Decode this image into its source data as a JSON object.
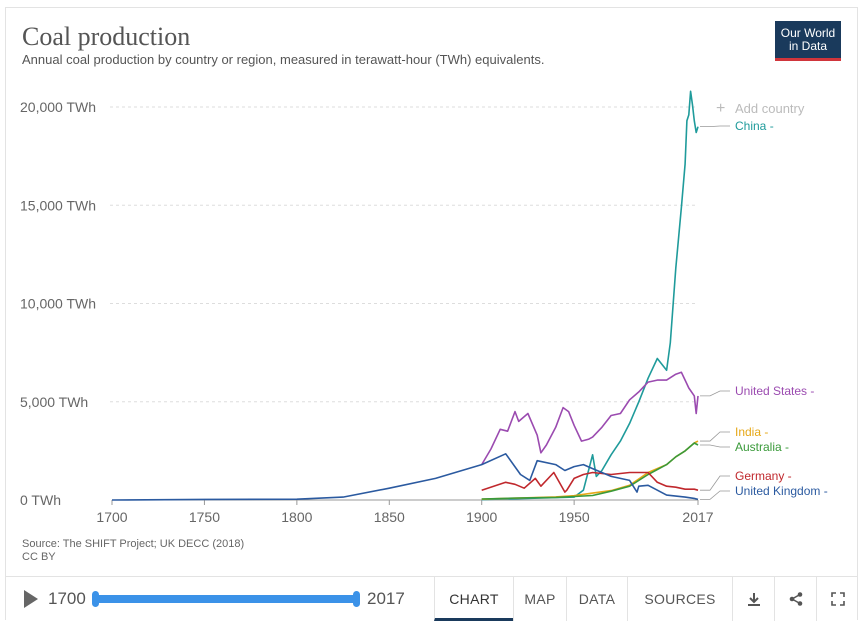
{
  "header": {
    "title": "Coal production",
    "subtitle": "Annual coal production by country or region, measured in terawatt-hour (TWh) equivalents.",
    "logo_line1": "Our World",
    "logo_line2": "in Data"
  },
  "add_country_label": "Add country",
  "source": {
    "line1": "Source: The SHIFT Project; UK DECC (2018)",
    "line2": "CC BY"
  },
  "footer": {
    "start_year": "1700",
    "end_year": "2017",
    "range_start_fraction": 0.0,
    "range_end_fraction": 1.0,
    "tabs": [
      "CHART",
      "MAP",
      "DATA",
      "SOURCES"
    ],
    "active_tab": "CHART",
    "icons": [
      "download-icon",
      "share-icon",
      "fullscreen-icon"
    ]
  },
  "colors": {
    "China": "#1f9b9b",
    "United States": "#9b4bb0",
    "India": "#e6a817",
    "Australia": "#3a9a3a",
    "Germany": "#c0282d",
    "United Kingdom": "#2b5aa0",
    "grid": "#dddddd"
  },
  "chart_data": {
    "type": "line",
    "title": "Coal production",
    "subtitle": "Annual coal production by country or region, measured in terawatt-hour (TWh) equivalents.",
    "xlabel": "",
    "ylabel": "",
    "xlim": [
      1700,
      2017
    ],
    "ylim": [
      0,
      20000
    ],
    "x_ticks": [
      "1700",
      "1750",
      "1800",
      "1850",
      "1900",
      "1950",
      "2017"
    ],
    "y_ticks": [
      "0 TWh",
      "5,000 TWh",
      "10,000 TWh",
      "15,000 TWh",
      "20,000 TWh"
    ],
    "y_tick_values": [
      0,
      5000,
      10000,
      15000,
      20000
    ],
    "x_tick_values": [
      1700,
      1750,
      1800,
      1850,
      1900,
      1950,
      2017
    ],
    "grid": true,
    "legend_position": "right (line end labels)",
    "series": [
      {
        "name": "China",
        "label": "China -",
        "x": [
          1900,
          1950,
          1955,
          1960,
          1962,
          1965,
          1970,
          1975,
          1980,
          1985,
          1990,
          1995,
          2000,
          2002,
          2005,
          2008,
          2010,
          2011,
          2012,
          2013,
          2014,
          2015,
          2016,
          2017
        ],
        "y": [
          20,
          150,
          500,
          2300,
          1200,
          1500,
          2300,
          3000,
          3900,
          5000,
          6200,
          7200,
          6600,
          8000,
          11800,
          14900,
          17100,
          19300,
          19600,
          20800,
          20100,
          19300,
          18700,
          19000
        ]
      },
      {
        "name": "United States",
        "label": "United States -",
        "x": [
          1900,
          1905,
          1910,
          1914,
          1918,
          1920,
          1925,
          1930,
          1932,
          1935,
          1940,
          1944,
          1947,
          1950,
          1954,
          1958,
          1960,
          1965,
          1970,
          1975,
          1980,
          1985,
          1990,
          1995,
          2000,
          2005,
          2008,
          2010,
          2012,
          2015,
          2016,
          2017
        ],
        "y": [
          1800,
          2600,
          3600,
          3500,
          4500,
          4000,
          4400,
          3300,
          2400,
          2800,
          3700,
          4700,
          4500,
          3800,
          3000,
          3100,
          3200,
          3700,
          4300,
          4400,
          5100,
          5500,
          6000,
          6100,
          6100,
          6400,
          6500,
          6100,
          5700,
          5300,
          4400,
          5300
        ]
      },
      {
        "name": "India",
        "label": "India -",
        "x": [
          1900,
          1920,
          1940,
          1950,
          1960,
          1970,
          1980,
          1990,
          2000,
          2005,
          2010,
          2015,
          2017
        ],
        "y": [
          40,
          100,
          160,
          220,
          350,
          480,
          750,
          1400,
          1800,
          2200,
          2500,
          2900,
          3000
        ]
      },
      {
        "name": "Australia",
        "label": "Australia -",
        "x": [
          1900,
          1920,
          1940,
          1950,
          1960,
          1970,
          1980,
          1990,
          2000,
          2005,
          2010,
          2015,
          2017
        ],
        "y": [
          50,
          100,
          130,
          180,
          230,
          450,
          700,
          1300,
          1800,
          2200,
          2500,
          2900,
          2800
        ]
      },
      {
        "name": "Germany",
        "label": "Germany -",
        "x": [
          1900,
          1913,
          1918,
          1923,
          1929,
          1932,
          1939,
          1945,
          1946,
          1950,
          1955,
          1960,
          1970,
          1980,
          1985,
          1990,
          1995,
          2000,
          2005,
          2010,
          2015,
          2017
        ],
        "y": [
          500,
          900,
          800,
          600,
          1100,
          700,
          1400,
          400,
          500,
          1100,
          1300,
          1400,
          1300,
          1400,
          1400,
          1400,
          900,
          700,
          650,
          550,
          550,
          500
        ]
      },
      {
        "name": "United Kingdom",
        "label": "United Kingdom -",
        "x": [
          1700,
          1750,
          1800,
          1825,
          1850,
          1875,
          1900,
          1913,
          1921,
          1926,
          1930,
          1940,
          1945,
          1950,
          1955,
          1960,
          1970,
          1980,
          1984,
          1985,
          1990,
          2000,
          2010,
          2015,
          2017
        ],
        "y": [
          0,
          30,
          40,
          150,
          600,
          1100,
          1800,
          2350,
          1300,
          1000,
          2000,
          1800,
          1500,
          1700,
          1800,
          1600,
          1200,
          1000,
          400,
          700,
          750,
          250,
          150,
          80,
          30
        ]
      }
    ]
  }
}
